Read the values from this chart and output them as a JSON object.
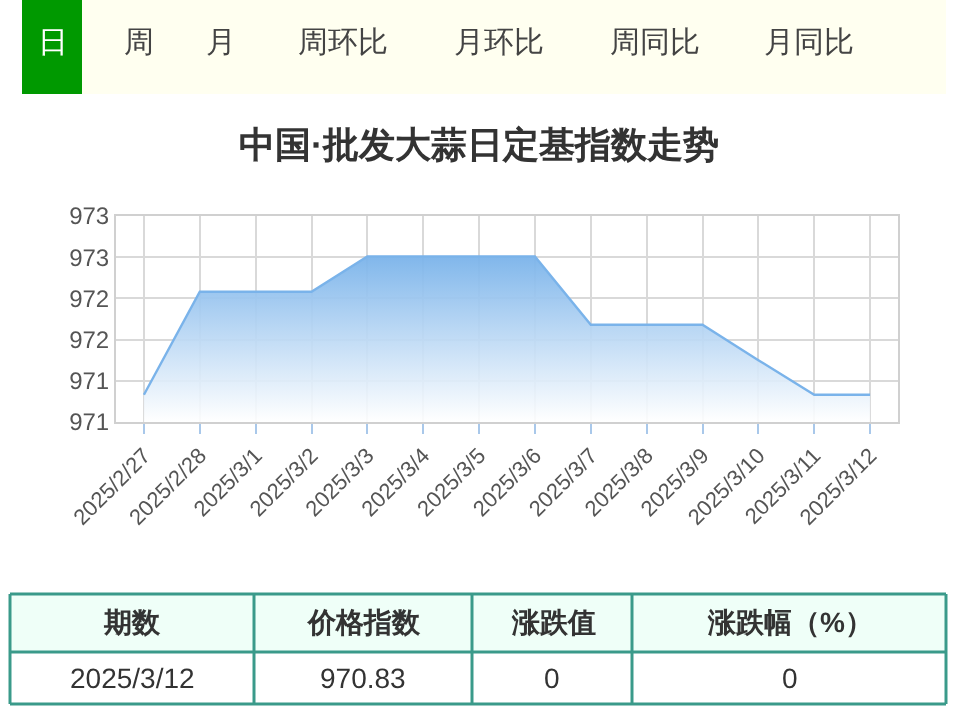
{
  "chart_data": {
    "type": "area",
    "title": "中国·批发大蒜日定基指数走势",
    "categories": [
      "2025/2/27",
      "2025/2/28",
      "2025/3/1",
      "2025/3/2",
      "2025/3/3",
      "2025/3/4",
      "2025/3/5",
      "2025/3/6",
      "2025/3/7",
      "2025/3/8",
      "2025/3/9",
      "2025/3/10",
      "2025/3/11",
      "2025/3/12"
    ],
    "series": [
      {
        "color": "#7ab3ea",
        "values": [
          970.83,
          972.08,
          972.08,
          972.08,
          972.51,
          972.51,
          972.51,
          972.51,
          971.68,
          971.68,
          971.68,
          971.25,
          970.83,
          970.83
        ]
      }
    ],
    "ylim": [
      970.5,
      973.0
    ],
    "yticks": [
      {
        "value": 970.5,
        "label": "971"
      },
      {
        "value": 971.0,
        "label": "971"
      },
      {
        "value": 971.5,
        "label": "972"
      },
      {
        "value": 972.0,
        "label": "972"
      },
      {
        "value": 972.5,
        "label": "973"
      },
      {
        "value": 973.0,
        "label": "973"
      }
    ],
    "grid": true,
    "marker": "none",
    "annotations": [
      "日",
      "周",
      "月",
      "周环比",
      "月环比",
      "周同比",
      "月同比",
      "期数",
      "价格指数",
      "涨跌值",
      "涨跌幅（%）",
      "2025/3/12",
      "970.83",
      "0",
      "0"
    ]
  }
}
